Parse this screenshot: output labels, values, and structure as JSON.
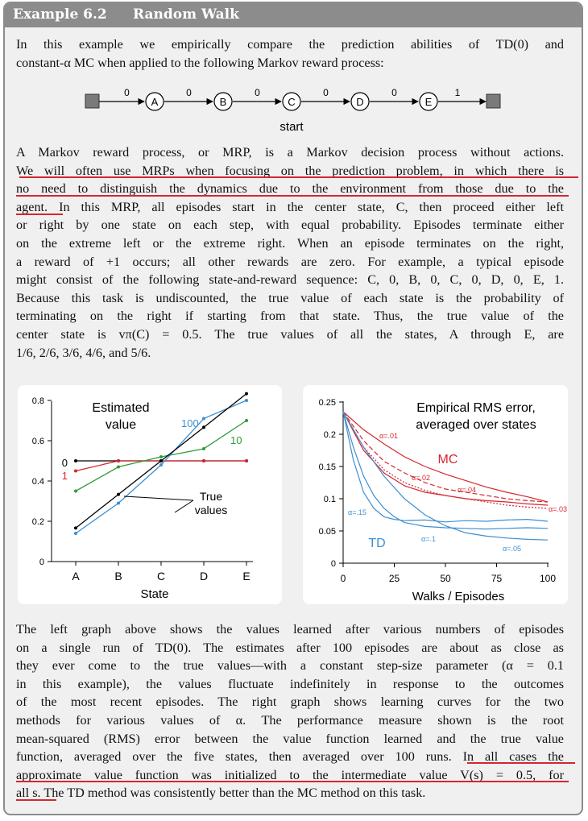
{
  "header": {
    "example_number": "Example 6.2",
    "example_title": "Random Walk"
  },
  "intro": [
    "In this example we empirically compare the prediction abilities of TD(0) and",
    "constant-α MC when applied to the following Markov reward process:"
  ],
  "mrp_diagram": {
    "states": [
      "A",
      "B",
      "C",
      "D",
      "E"
    ],
    "rewards": [
      "0",
      "0",
      "0",
      "0",
      "0",
      "1"
    ],
    "start_label": "start"
  },
  "paragraph1": [
    "A Markov reward process, or MRP, is a Markov decision process without actions.",
    "We will often use MRPs when focusing on the prediction problem, in which there is",
    "no need to distinguish the dynamics due to the environment from those due to the",
    "agent. In this MRP, all episodes start in the center state, C, then proceed either left",
    "or right by one state on each step, with equal probability. Episodes terminate either",
    "on the extreme left or the extreme right. When an episode terminates on the right,",
    "a reward of +1 occurs; all other rewards are zero. For example, a typical episode",
    "might consist of the following state-and-reward sequence: C, 0, B, 0, C, 0, D, 0, E, 1.",
    "Because this task is undiscounted, the true value of each state is the probability of",
    "terminating on the right if starting from that state. Thus, the true value of the",
    "center state is vπ(C) = 0.5. The true values of all the states, A through E, are",
    "1/6, 2/6, 3/6, 4/6, and 5/6."
  ],
  "paragraph2": [
    "The left graph above shows the values learned after various numbers of episodes",
    "on a single run of TD(0). The estimates after 100 episodes are about as close as",
    "they ever come to the true values—with a constant step-size parameter (α = 0.1",
    "in this example), the values fluctuate indefinitely in response to the outcomes",
    "of the most recent episodes. The right graph shows learning curves for the two",
    "methods for various values of α. The performance measure shown is the root",
    "mean-squared (RMS) error between the value function learned and the true value",
    "function, averaged over the five states, then averaged over 100 runs. In all cases the",
    "approximate value function was initialized to the intermediate value V(s) = 0.5, for",
    "all s. The TD method was consistently better than the MC method on this task."
  ],
  "chart_data": [
    {
      "type": "line",
      "title": "Estimated value",
      "xlabel": "State",
      "ylabel": "",
      "categories": [
        "A",
        "B",
        "C",
        "D",
        "E"
      ],
      "ylim": [
        0,
        0.8
      ],
      "yticks": [
        "0",
        "0.2",
        "0.4",
        "0.6",
        "0.8"
      ],
      "annotation": "True values",
      "series": [
        {
          "name": "0",
          "values": [
            0.5,
            0.5,
            0.5,
            0.5,
            0.5
          ],
          "color": "#000000"
        },
        {
          "name": "1",
          "values": [
            0.45,
            0.5,
            0.5,
            0.5,
            0.5
          ],
          "color": "#d6262e"
        },
        {
          "name": "10",
          "values": [
            0.35,
            0.47,
            0.52,
            0.56,
            0.7
          ],
          "color": "#2e9c3a"
        },
        {
          "name": "100",
          "values": [
            0.14,
            0.29,
            0.48,
            0.71,
            0.8
          ],
          "color": "#3d8fd1"
        },
        {
          "name": "",
          "values": [
            0.1667,
            0.3333,
            0.5,
            0.6667,
            0.8333
          ],
          "color": "#000000"
        }
      ]
    },
    {
      "type": "line",
      "title": "Empirical RMS error, averaged over states",
      "xlabel": "Walks / Episodes",
      "ylabel": "",
      "xlim": [
        0,
        100
      ],
      "ylim": [
        0,
        0.25
      ],
      "xticks": [
        "0",
        "25",
        "50",
        "75",
        "100"
      ],
      "yticks": [
        "0",
        "0.05",
        "0.1",
        "0.15",
        "0.2",
        "0.25"
      ],
      "method_labels": {
        "mc": "MC",
        "td": "TD"
      },
      "series": [
        {
          "name": "α=.01",
          "method": "MC",
          "style": "solid",
          "color": "#d6262e",
          "x": [
            0,
            10,
            20,
            30,
            40,
            50,
            60,
            70,
            80,
            90,
            100
          ],
          "y": [
            0.235,
            0.207,
            0.185,
            0.165,
            0.15,
            0.138,
            0.128,
            0.118,
            0.11,
            0.103,
            0.095
          ]
        },
        {
          "name": "α=.02",
          "method": "MC",
          "style": "dashed",
          "color": "#d6262e",
          "x": [
            0,
            10,
            20,
            30,
            40,
            50,
            60,
            70,
            80,
            90,
            100
          ],
          "y": [
            0.235,
            0.19,
            0.158,
            0.14,
            0.125,
            0.115,
            0.11,
            0.105,
            0.1,
            0.097,
            0.095
          ]
        },
        {
          "name": "α=.04",
          "method": "MC",
          "style": "solid",
          "color": "#d6262e",
          "x": [
            0,
            10,
            20,
            30,
            40,
            50,
            60,
            70,
            80,
            90,
            100
          ],
          "y": [
            0.235,
            0.175,
            0.14,
            0.12,
            0.11,
            0.105,
            0.1,
            0.097,
            0.095,
            0.092,
            0.09
          ]
        },
        {
          "name": "α=.03",
          "method": "MC",
          "style": "dotted",
          "color": "#d6262e",
          "x": [
            0,
            10,
            20,
            30,
            40,
            50,
            60,
            70,
            80,
            90,
            100
          ],
          "y": [
            0.235,
            0.18,
            0.145,
            0.125,
            0.113,
            0.105,
            0.1,
            0.095,
            0.09,
            0.087,
            0.085
          ]
        },
        {
          "name": "α=.15",
          "method": "TD",
          "style": "solid",
          "color": "#3d8fd1",
          "x": [
            0,
            5,
            10,
            15,
            20,
            25,
            30,
            40,
            50,
            60,
            70,
            80,
            90,
            100
          ],
          "y": [
            0.235,
            0.16,
            0.11,
            0.085,
            0.072,
            0.068,
            0.066,
            0.067,
            0.064,
            0.066,
            0.065,
            0.067,
            0.068,
            0.065
          ]
        },
        {
          "name": "α=.1",
          "method": "TD",
          "style": "solid",
          "color": "#3d8fd1",
          "x": [
            0,
            5,
            10,
            15,
            20,
            25,
            30,
            40,
            50,
            60,
            70,
            80,
            90,
            100
          ],
          "y": [
            0.235,
            0.18,
            0.135,
            0.105,
            0.085,
            0.072,
            0.063,
            0.057,
            0.055,
            0.054,
            0.053,
            0.054,
            0.055,
            0.054
          ]
        },
        {
          "name": "α=.05",
          "method": "TD",
          "style": "solid",
          "color": "#3d8fd1",
          "x": [
            0,
            10,
            20,
            30,
            40,
            50,
            60,
            70,
            80,
            90,
            100
          ],
          "y": [
            0.235,
            0.18,
            0.135,
            0.1,
            0.075,
            0.058,
            0.047,
            0.042,
            0.039,
            0.037,
            0.036
          ]
        }
      ]
    }
  ]
}
